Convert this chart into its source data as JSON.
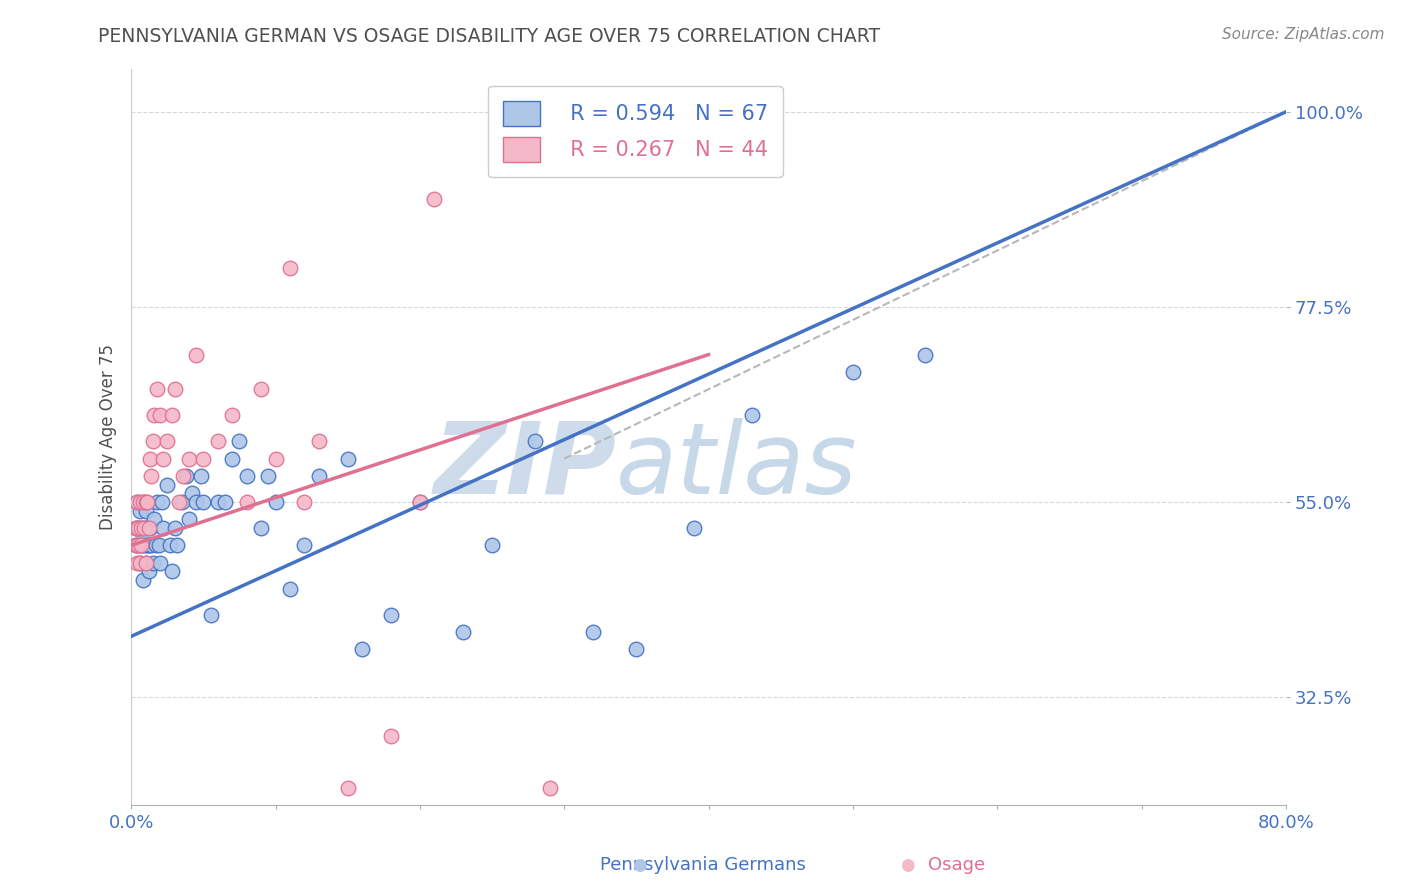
{
  "title": "PENNSYLVANIA GERMAN VS OSAGE DISABILITY AGE OVER 75 CORRELATION CHART",
  "source_text": "Source: ZipAtlas.com",
  "ylabel": "Disability Age Over 75",
  "xmin": 0.0,
  "xmax": 0.8,
  "ymin": 0.2,
  "ymax": 1.05,
  "yticks": [
    0.325,
    0.55,
    0.775,
    1.0
  ],
  "ytick_labels": [
    "32.5%",
    "55.0%",
    "77.5%",
    "100.0%"
  ],
  "xticks": [
    0.0,
    0.1,
    0.2,
    0.3,
    0.4,
    0.5,
    0.6,
    0.7,
    0.8
  ],
  "xtick_labels": [
    "0.0%",
    "",
    "",
    "",
    "",
    "",
    "",
    "",
    "80.0%"
  ],
  "legend_blue_r": "R = 0.594",
  "legend_blue_n": "N = 67",
  "legend_pink_r": "R = 0.267",
  "legend_pink_n": "N = 44",
  "blue_color": "#aec6e8",
  "blue_line_color": "#4472c4",
  "pink_color": "#f4b8c8",
  "pink_line_color": "#e07090",
  "axis_color": "#4472c4",
  "grid_color": "#d8d8d8",
  "title_color": "#505050",
  "watermark_color": "#ccd9ea",
  "blue_scatter_x": [
    0.003,
    0.003,
    0.004,
    0.005,
    0.005,
    0.006,
    0.006,
    0.007,
    0.007,
    0.008,
    0.008,
    0.009,
    0.009,
    0.01,
    0.01,
    0.01,
    0.011,
    0.011,
    0.012,
    0.012,
    0.013,
    0.014,
    0.015,
    0.016,
    0.017,
    0.018,
    0.019,
    0.02,
    0.021,
    0.022,
    0.025,
    0.027,
    0.028,
    0.03,
    0.032,
    0.035,
    0.038,
    0.04,
    0.042,
    0.045,
    0.048,
    0.05,
    0.055,
    0.06,
    0.065,
    0.07,
    0.075,
    0.08,
    0.09,
    0.095,
    0.1,
    0.11,
    0.12,
    0.13,
    0.15,
    0.16,
    0.18,
    0.2,
    0.23,
    0.25,
    0.28,
    0.32,
    0.35,
    0.39,
    0.43,
    0.5,
    0.55
  ],
  "blue_scatter_y": [
    0.5,
    0.52,
    0.55,
    0.5,
    0.52,
    0.48,
    0.54,
    0.5,
    0.52,
    0.46,
    0.5,
    0.52,
    0.55,
    0.48,
    0.5,
    0.54,
    0.5,
    0.52,
    0.47,
    0.5,
    0.52,
    0.5,
    0.48,
    0.53,
    0.5,
    0.55,
    0.5,
    0.48,
    0.55,
    0.52,
    0.57,
    0.5,
    0.47,
    0.52,
    0.5,
    0.55,
    0.58,
    0.53,
    0.56,
    0.55,
    0.58,
    0.55,
    0.42,
    0.55,
    0.55,
    0.6,
    0.62,
    0.58,
    0.52,
    0.58,
    0.55,
    0.45,
    0.5,
    0.58,
    0.6,
    0.38,
    0.42,
    0.55,
    0.4,
    0.5,
    0.62,
    0.4,
    0.38,
    0.52,
    0.65,
    0.7,
    0.72
  ],
  "pink_scatter_x": [
    0.003,
    0.003,
    0.004,
    0.004,
    0.005,
    0.005,
    0.006,
    0.006,
    0.007,
    0.007,
    0.008,
    0.009,
    0.01,
    0.01,
    0.011,
    0.012,
    0.013,
    0.014,
    0.015,
    0.016,
    0.018,
    0.02,
    0.022,
    0.025,
    0.028,
    0.03,
    0.033,
    0.036,
    0.04,
    0.045,
    0.05,
    0.06,
    0.07,
    0.08,
    0.09,
    0.1,
    0.11,
    0.12,
    0.13,
    0.15,
    0.18,
    0.2,
    0.21,
    0.29
  ],
  "pink_scatter_y": [
    0.5,
    0.52,
    0.48,
    0.55,
    0.5,
    0.52,
    0.48,
    0.55,
    0.52,
    0.5,
    0.55,
    0.52,
    0.48,
    0.55,
    0.55,
    0.52,
    0.6,
    0.58,
    0.62,
    0.65,
    0.68,
    0.65,
    0.6,
    0.62,
    0.65,
    0.68,
    0.55,
    0.58,
    0.6,
    0.72,
    0.6,
    0.62,
    0.65,
    0.55,
    0.68,
    0.6,
    0.82,
    0.55,
    0.62,
    0.22,
    0.28,
    0.55,
    0.9,
    0.22
  ],
  "blue_line_x": [
    0.0,
    0.8
  ],
  "blue_line_y": [
    0.395,
    1.0
  ],
  "pink_line_x": [
    0.0,
    0.4
  ],
  "pink_line_y": [
    0.5,
    0.72
  ],
  "gray_line_x": [
    0.3,
    0.8
  ],
  "gray_line_y": [
    0.6,
    1.0
  ]
}
